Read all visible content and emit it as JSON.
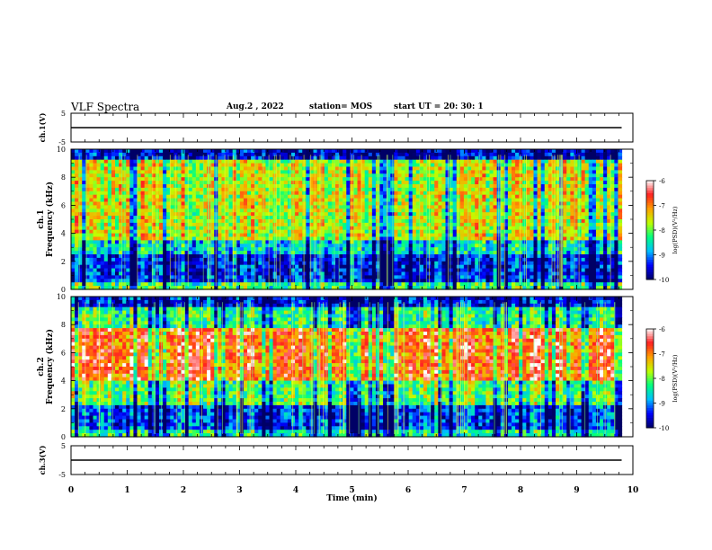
{
  "header": {
    "title": "VLF Spectra",
    "date": "Aug.2  , 2022",
    "station": "station= MOS",
    "start": "start  UT  =   20: 30: 1"
  },
  "colors": {
    "ch1_trace": "#000000",
    "ch3_trace": "#000000",
    "colormap": [
      "#000066",
      "#0000ff",
      "#00c0ff",
      "#00ff80",
      "#c0ff00",
      "#ffa000",
      "#ff2020",
      "#ffffff"
    ]
  },
  "chart_data": [
    {
      "type": "line",
      "panel": "ch1-waveform",
      "ylabel": "ch.1(V)",
      "ylim": [
        -5,
        5
      ],
      "yticks": [
        "5",
        "-5"
      ],
      "xlim": [
        0,
        10
      ],
      "series": [
        {
          "x": [
            0,
            9.8
          ],
          "y": [
            0,
            0
          ]
        }
      ]
    },
    {
      "type": "heatmap",
      "panel": "ch1-spectrogram",
      "ylabel_top": "ch.1",
      "ylabel": "Frequency (kHz)",
      "ylim": [
        0,
        10
      ],
      "yticks": [
        "0",
        "2",
        "4",
        "6",
        "8",
        "10"
      ],
      "xlim": [
        0,
        10
      ],
      "data_end_min": 9.8,
      "bands": [
        {
          "from_khz": 0,
          "to_khz": 0.5,
          "level": 0.45
        },
        {
          "from_khz": 0.5,
          "to_khz": 2.5,
          "level": 0.15
        },
        {
          "from_khz": 2.5,
          "to_khz": 3.5,
          "level": 0.35
        },
        {
          "from_khz": 3.5,
          "to_khz": 9.3,
          "level": 0.6
        },
        {
          "from_khz": 9.3,
          "to_khz": 10,
          "level": 0.1
        }
      ],
      "colorbar": {
        "label": "log(PSD)(V²/Hz)",
        "ticks": [
          "-6",
          "-7",
          "-8",
          "-9",
          "-10"
        ],
        "range": [
          -10,
          -6
        ]
      }
    },
    {
      "type": "heatmap",
      "panel": "ch2-spectrogram",
      "ylabel_top": "ch.2",
      "ylabel": "Frequency (kHz)",
      "ylim": [
        0,
        10
      ],
      "yticks": [
        "0",
        "2",
        "4",
        "6",
        "8",
        "10"
      ],
      "xlim": [
        0,
        10
      ],
      "data_end_min": 9.8,
      "bands": [
        {
          "from_khz": 0,
          "to_khz": 0.5,
          "level": 0.4
        },
        {
          "from_khz": 0.5,
          "to_khz": 2.3,
          "level": 0.2
        },
        {
          "from_khz": 2.3,
          "to_khz": 4.0,
          "level": 0.5
        },
        {
          "from_khz": 4.0,
          "to_khz": 7.8,
          "level": 0.82
        },
        {
          "from_khz": 7.8,
          "to_khz": 9.3,
          "level": 0.45
        },
        {
          "from_khz": 9.3,
          "to_khz": 10,
          "level": 0.15
        }
      ],
      "colorbar": {
        "label": "log(PSD)(V²/Hz)",
        "ticks": [
          "-6",
          "-7",
          "-8",
          "-9",
          "-10"
        ],
        "range": [
          -10,
          -6
        ]
      }
    },
    {
      "type": "line",
      "panel": "ch3-waveform",
      "ylabel": "ch.3(V)",
      "ylim": [
        -5,
        5
      ],
      "yticks": [
        "5",
        "-5"
      ],
      "xlim": [
        0,
        10
      ],
      "series": [
        {
          "x": [
            0,
            9.8
          ],
          "y": [
            0,
            0
          ]
        }
      ]
    }
  ],
  "xaxis": {
    "label": "Time (min)",
    "range": [
      0,
      10
    ],
    "ticks": [
      "0",
      "1",
      "2",
      "3",
      "4",
      "5",
      "6",
      "7",
      "8",
      "9",
      "10"
    ]
  }
}
